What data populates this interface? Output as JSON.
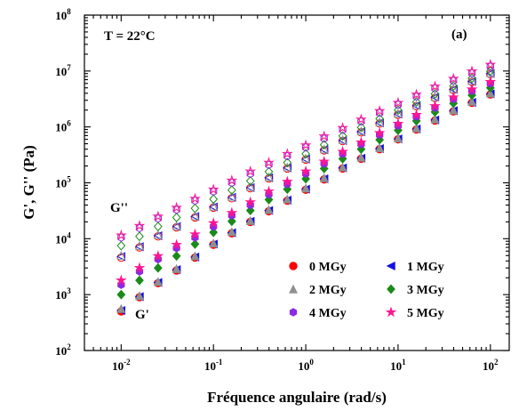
{
  "chart_data": {
    "type": "scatter",
    "x_scale": "log",
    "y_scale": "log",
    "xlabel": "Fréquence angulaire (rad/s)",
    "ylabel": "G', G'' (Pa)",
    "xlim": [
      0.004,
      160
    ],
    "ylim": [
      100,
      100000000
    ],
    "x_ticks": [
      {
        "mantissa": "10",
        "exp": "-2",
        "value": 0.01
      },
      {
        "mantissa": "10",
        "exp": "-1",
        "value": 0.1
      },
      {
        "mantissa": "10",
        "exp": "0",
        "value": 1
      },
      {
        "mantissa": "10",
        "exp": "1",
        "value": 10
      },
      {
        "mantissa": "10",
        "exp": "2",
        "value": 100
      }
    ],
    "y_ticks": [
      {
        "mantissa": "10",
        "exp": "2",
        "value": 100
      },
      {
        "mantissa": "10",
        "exp": "3",
        "value": 1000
      },
      {
        "mantissa": "10",
        "exp": "4",
        "value": 10000
      },
      {
        "mantissa": "10",
        "exp": "5",
        "value": 100000
      },
      {
        "mantissa": "10",
        "exp": "6",
        "value": 1000000
      },
      {
        "mantissa": "10",
        "exp": "7",
        "value": 10000000
      },
      {
        "mantissa": "10",
        "exp": "8",
        "value": 100000000
      }
    ],
    "annotations": {
      "temperature": "T = 22°C",
      "panel": "(a)",
      "g_double_prime": "G''",
      "g_prime": "G'"
    },
    "legend_position": "lower-right inside",
    "x": [
      0.01,
      0.0158,
      0.0251,
      0.0398,
      0.0631,
      0.1,
      0.158,
      0.251,
      0.398,
      0.631,
      1,
      1.58,
      2.51,
      3.98,
      6.31,
      10,
      15.8,
      25.1,
      39.8,
      63.1,
      100
    ],
    "series": [
      {
        "name": "0 MGy",
        "marker": "circle",
        "color": "#ff0000",
        "g_prime": [
          500,
          900,
          1600,
          2700,
          4600,
          7800,
          12500,
          20000,
          31000,
          48000,
          75000,
          115000,
          180000,
          270000,
          400000,
          600000,
          900000,
          1300000,
          1900000,
          2700000,
          3800000
        ],
        "g_double": [
          4600,
          7000,
          11000,
          16000,
          24000,
          36000,
          53000,
          80000,
          120000,
          180000,
          260000,
          380000,
          560000,
          800000,
          1150000,
          1650000,
          2350000,
          3300000,
          4600000,
          6400000,
          8800000
        ]
      },
      {
        "name": "1 MGy",
        "marker": "triangle-left",
        "color": "#1010e0",
        "g_prime": [
          520,
          920,
          1650,
          2800,
          4700,
          8000,
          12800,
          20500,
          32000,
          49000,
          77000,
          118000,
          185000,
          275000,
          410000,
          610000,
          920000,
          1330000,
          1950000,
          2750000,
          3900000
        ],
        "g_double": [
          4800,
          7200,
          11300,
          16500,
          25000,
          37000,
          55000,
          82000,
          123000,
          185000,
          265000,
          390000,
          570000,
          820000,
          1180000,
          1700000,
          2400000,
          3400000,
          4700000,
          6500000,
          9000000
        ]
      },
      {
        "name": "2 MGy",
        "marker": "triangle-up",
        "color": "#909090",
        "g_prime": [
          560,
          950,
          1700,
          2900,
          4900,
          8300,
          13300,
          21000,
          33000,
          51000,
          80000,
          122000,
          190000,
          285000,
          420000,
          630000,
          950000,
          1380000,
          2000000,
          2850000,
          4000000
        ],
        "g_double": [
          5000,
          7500,
          11700,
          17000,
          25500,
          38000,
          57000,
          85000,
          127000,
          190000,
          275000,
          400000,
          590000,
          840000,
          1210000,
          1740000,
          2450000,
          3450000,
          4800000,
          6700000,
          9200000
        ]
      },
      {
        "name": "3 MGy",
        "marker": "diamond",
        "color": "#1a8a1a",
        "g_prime": [
          1000,
          1800,
          3000,
          4900,
          8000,
          13000,
          20500,
          32000,
          50000,
          77000,
          118000,
          180000,
          270000,
          400000,
          590000,
          870000,
          1280000,
          1850000,
          2650000,
          3700000,
          5000000
        ],
        "g_double": [
          7500,
          11000,
          16500,
          24000,
          35000,
          51000,
          74000,
          108000,
          158000,
          230000,
          330000,
          480000,
          690000,
          980000,
          1400000,
          2000000,
          2800000,
          3900000,
          5400000,
          7400000,
          10000000
        ]
      },
      {
        "name": "4 MGy",
        "marker": "hexagon",
        "color": "#8a2be2",
        "g_prime": [
          1500,
          2600,
          4300,
          6800,
          10500,
          16500,
          26000,
          40000,
          62000,
          95000,
          145000,
          220000,
          330000,
          490000,
          720000,
          1050000,
          1530000,
          2200000,
          3150000,
          4400000,
          6000000
        ],
        "g_double": [
          10500,
          15500,
          23000,
          33000,
          48000,
          70000,
          100000,
          145000,
          210000,
          300000,
          430000,
          620000,
          880000,
          1250000,
          1780000,
          2500000,
          3500000,
          4900000,
          6700000,
          9100000,
          12000000
        ]
      },
      {
        "name": "5 MGy",
        "marker": "star",
        "color": "#ff1493",
        "g_prime": [
          1800,
          3000,
          4900,
          7800,
          12000,
          19000,
          29000,
          45000,
          70000,
          105000,
          160000,
          240000,
          360000,
          530000,
          780000,
          1140000,
          1650000,
          2370000,
          3380000,
          4700000,
          6400000
        ],
        "g_double": [
          11500,
          17000,
          25000,
          36000,
          52000,
          76000,
          110000,
          160000,
          230000,
          330000,
          470000,
          680000,
          960000,
          1360000,
          1930000,
          2700000,
          3800000,
          5300000,
          7300000,
          9900000,
          13000000
        ]
      }
    ]
  }
}
